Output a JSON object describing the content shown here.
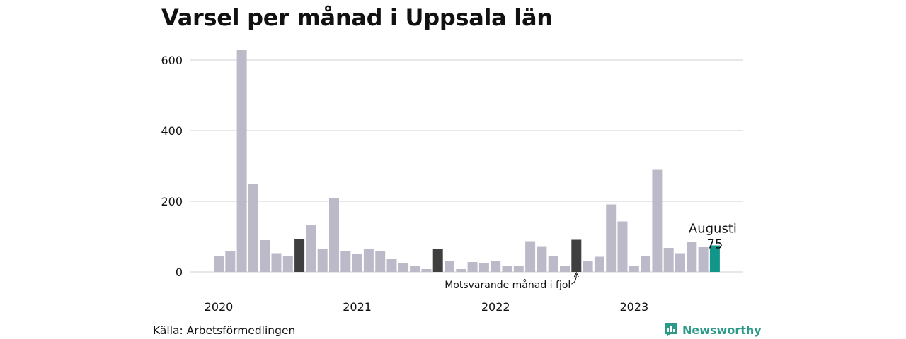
{
  "title": "Varsel per månad i Uppsala län",
  "source": "Källa: Arbetsförmedlingen",
  "brand": {
    "name": "Newsworthy",
    "icon": "newsworthy-logo-icon"
  },
  "colors": {
    "default": "#bcbac8",
    "previous_year": "#3f3f3f",
    "highlight": "#13968a",
    "grid": "#d9d9de"
  },
  "chart_data": {
    "type": "bar",
    "title": "Varsel per månad i Uppsala län",
    "ylim": [
      0,
      620
    ],
    "yticks": [
      0,
      200,
      400,
      600
    ],
    "grid": true,
    "year_labels": [
      "2020",
      "2021",
      "2022",
      "2023"
    ],
    "x": [
      "2020-01",
      "2020-02",
      "2020-03",
      "2020-04",
      "2020-05",
      "2020-06",
      "2020-07",
      "2020-08",
      "2020-09",
      "2020-10",
      "2020-11",
      "2020-12",
      "2021-01",
      "2021-02",
      "2021-03",
      "2021-04",
      "2021-05",
      "2021-06",
      "2021-07",
      "2021-08",
      "2021-09",
      "2021-10",
      "2021-11",
      "2021-12",
      "2022-01",
      "2022-02",
      "2022-03",
      "2022-04",
      "2022-05",
      "2022-06",
      "2022-07",
      "2022-08",
      "2022-09",
      "2022-10",
      "2022-11",
      "2022-12",
      "2023-01",
      "2023-02",
      "2023-03",
      "2023-04",
      "2023-05",
      "2023-06",
      "2023-07",
      "2023-08"
    ],
    "values": [
      45,
      60,
      628,
      248,
      90,
      53,
      45,
      93,
      133,
      65,
      210,
      58,
      50,
      65,
      60,
      36,
      25,
      18,
      8,
      65,
      31,
      8,
      28,
      25,
      31,
      18,
      18,
      87,
      71,
      44,
      18,
      91,
      31,
      43,
      191,
      143,
      18,
      46,
      289,
      68,
      53,
      85,
      70,
      75
    ],
    "previous_year_months": [
      "2020-08",
      "2021-08",
      "2022-08"
    ],
    "highlight_month": "2023-08",
    "annotations": {
      "highlight_label": "Augusti",
      "highlight_value": "75",
      "previous_year_label": "Motsvarande månad i fjol"
    }
  }
}
